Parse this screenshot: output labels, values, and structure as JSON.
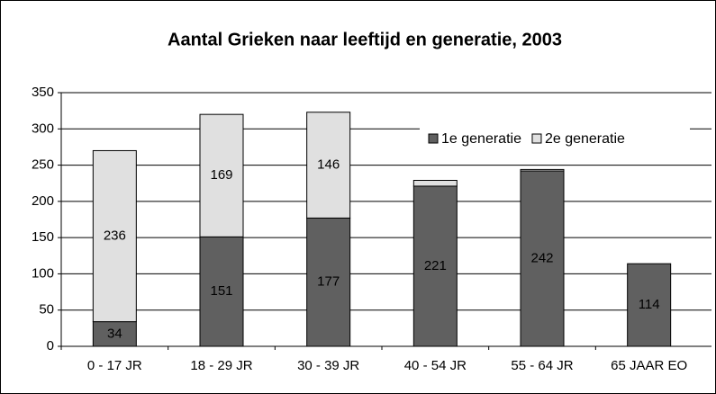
{
  "chart_data": {
    "type": "stacked_bar",
    "title": "Aantal Grieken naar leeftijd en generatie, 2003",
    "categories": [
      "0 - 17 JR",
      "18 - 29 JR",
      "30 - 39 JR",
      "40 - 54 JR",
      "55 - 64 JR",
      "65 JAAR EO"
    ],
    "series": [
      {
        "name": "1e generatie",
        "color": "#606060",
        "values": [
          34,
          151,
          177,
          221,
          242,
          114
        ]
      },
      {
        "name": "2e generatie",
        "color": "#e0e0e0",
        "values": [
          236,
          169,
          146,
          8,
          2,
          0
        ]
      }
    ],
    "ylim": [
      0,
      350
    ],
    "yticks": [
      0,
      50,
      100,
      150,
      200,
      250,
      300,
      350
    ],
    "grid": true,
    "legend": "upper right"
  }
}
